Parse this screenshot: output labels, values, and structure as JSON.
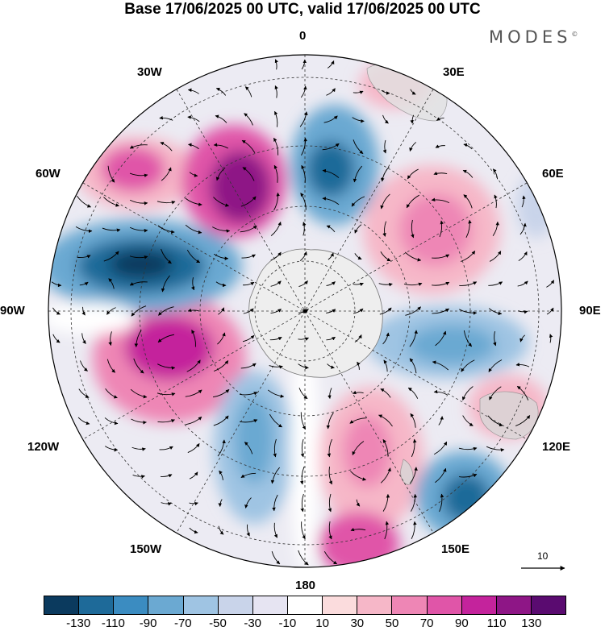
{
  "title": "Base 17/06/2025 00 UTC, valid 17/06/2025 00 UTC",
  "brand": "MODES",
  "brand_mark": "©",
  "map": {
    "projection": "south polar stereographic",
    "longitude_labels": {
      "top": "0",
      "top_right": "30E",
      "upper_right": "60E",
      "right": "90E",
      "lower_right": "120E",
      "bottom_right": "150E",
      "bottom": "180",
      "bottom_left": "150W",
      "lower_left": "120W",
      "left": "90W",
      "upper_left": "60W",
      "top_left": "30W"
    }
  },
  "vector_scale_label": "10",
  "colorbar": {
    "colors": [
      "#0b3a5e",
      "#1e6a99",
      "#3b8cc1",
      "#6ba9d2",
      "#9fc4e3",
      "#c9d4ea",
      "#e6e4f2",
      "#ffffff",
      "#fbdcdd",
      "#f6b7c8",
      "#ee86b5",
      "#e055a8",
      "#c4239c",
      "#8e1686",
      "#5a0b70"
    ],
    "tick_labels": [
      "-130",
      "-110",
      "-90",
      "-70",
      "-50",
      "-30",
      "-10",
      "10",
      "30",
      "50",
      "70",
      "90",
      "110",
      "130"
    ]
  },
  "colors": {
    "antarctica": "#eeeeee",
    "land": "#e2e2e2",
    "graticule": "#333333"
  }
}
